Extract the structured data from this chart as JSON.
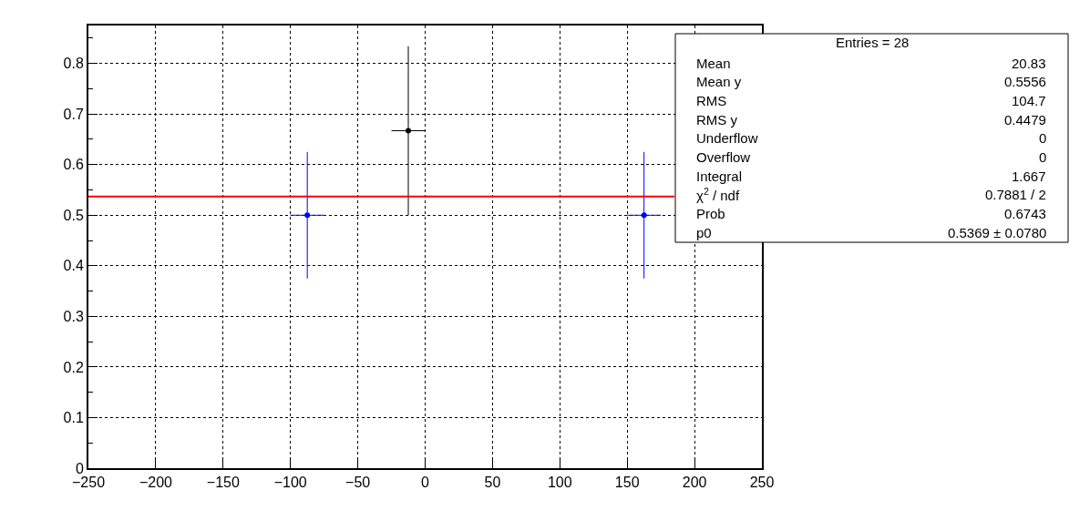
{
  "chart_data": {
    "type": "scatter",
    "x": [
      -87.5,
      -12.5,
      162.5
    ],
    "values": [
      0.5,
      0.667,
      0.5
    ],
    "colors": [
      "#0000ff",
      "#000000",
      "#0000ff"
    ],
    "errors": [
      0.125,
      0.167,
      0.125
    ],
    "xerrors": [
      12.5,
      12.5,
      12.5
    ],
    "marker": "circle",
    "series": [
      {
        "type": "line",
        "x": [
          -250,
          185
        ],
        "values": [
          0.537,
          0.537
        ],
        "color": "#ff0000",
        "line_style": "solid",
        "marker": "none"
      }
    ],
    "xlim": [
      -250,
      250
    ],
    "xticks": [
      -250,
      -200,
      -150,
      -100,
      -50,
      0,
      50,
      100,
      150,
      200,
      250
    ],
    "ylim": [
      0,
      0.875
    ],
    "yticks": [
      0,
      0.1,
      0.2,
      0.3,
      0.4,
      0.5,
      0.6,
      0.7,
      0.8
    ],
    "grid": true,
    "annotations": [
      "Entries = 28",
      "Mean",
      "20.83",
      "Mean y",
      "0.5556",
      "RMS",
      "104.7",
      "RMS y",
      "0.4479",
      "Underflow",
      "0",
      "Overflow",
      "0",
      "Integral",
      "1.667",
      "χ$^{2}$ / ndf",
      "0.7881 / 2",
      "Prob",
      "0.6743",
      "p0",
      "0.5369 ± 0.0780"
    ]
  }
}
